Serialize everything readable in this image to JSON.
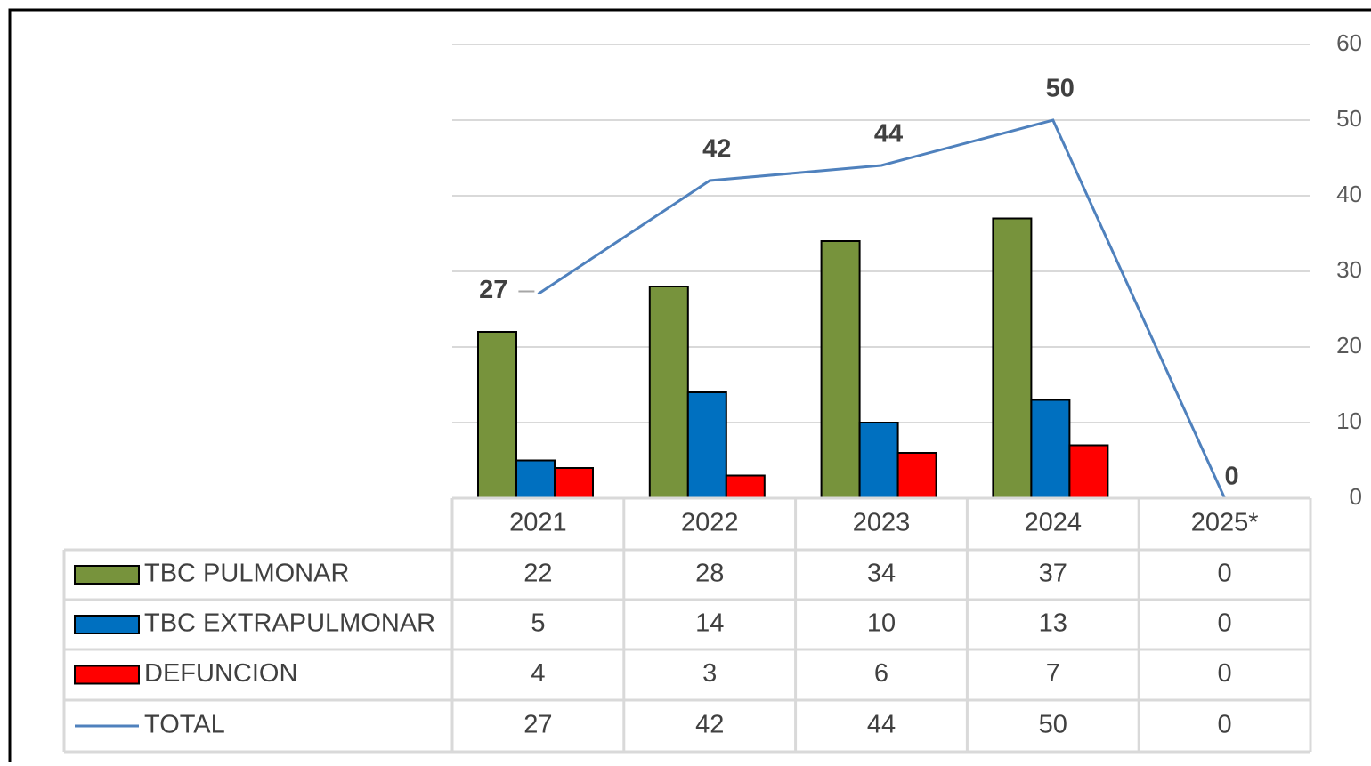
{
  "chart_data": {
    "type": "bar_line_table",
    "categories": [
      "2021",
      "2022",
      "2023",
      "2024",
      "2025*"
    ],
    "series": [
      {
        "name": "TBC PULMONAR",
        "type": "bar",
        "color": "#77933c",
        "values": [
          22,
          28,
          34,
          37,
          0
        ]
      },
      {
        "name": "TBC EXTRAPULMONAR",
        "type": "bar",
        "color": "#0070c0",
        "values": [
          5,
          14,
          10,
          13,
          0
        ]
      },
      {
        "name": "DEFUNCION",
        "type": "bar",
        "color": "#ff0000",
        "values": [
          4,
          3,
          6,
          7,
          0
        ]
      },
      {
        "name": "TOTAL",
        "type": "line",
        "color": "#4f81bd",
        "values": [
          27,
          42,
          44,
          50,
          0
        ]
      }
    ],
    "ylim": [
      0,
      60
    ],
    "yticks": [
      0,
      10,
      20,
      30,
      40,
      50,
      60
    ],
    "grid": true,
    "y_axis_side": "right",
    "data_table": true
  }
}
